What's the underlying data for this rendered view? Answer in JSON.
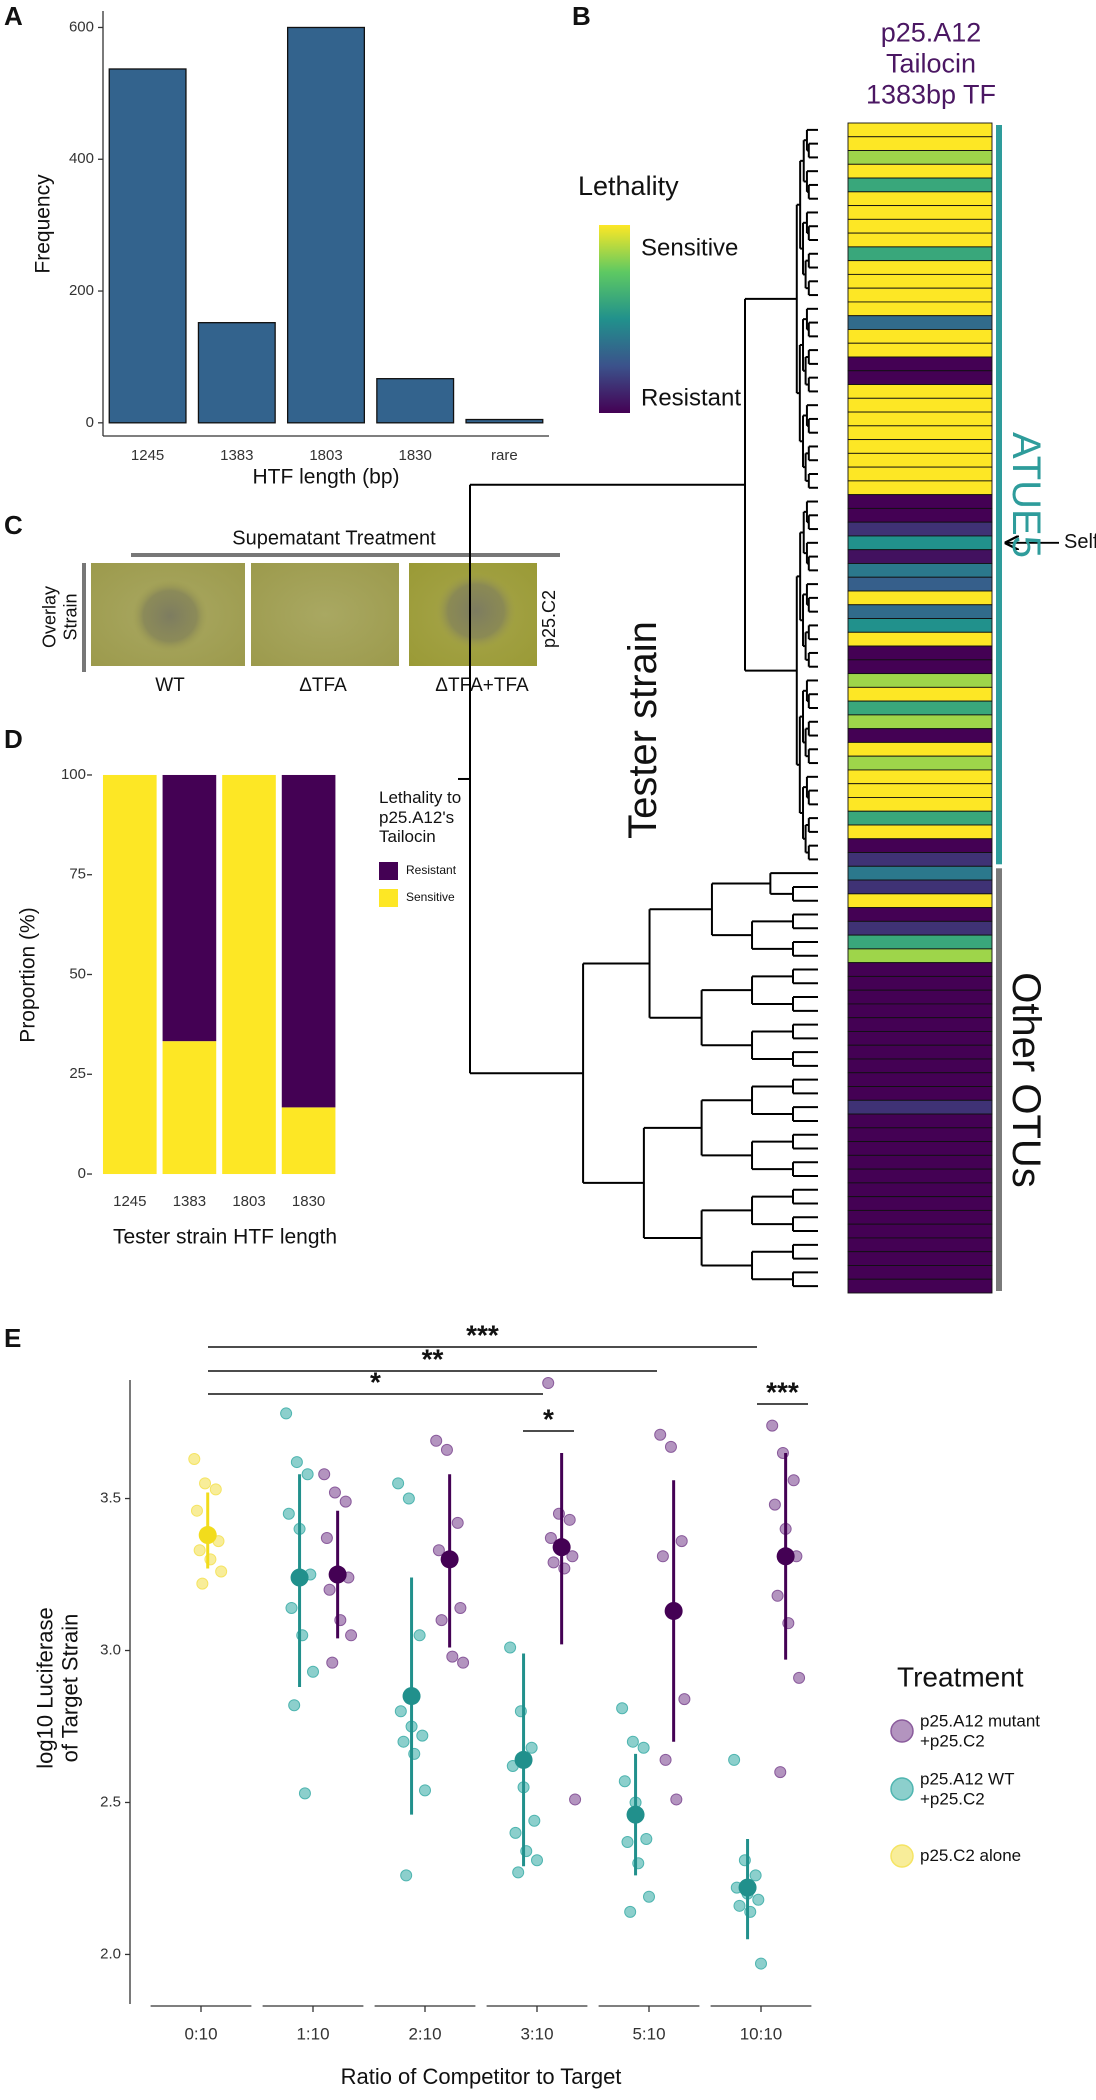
{
  "chart_data": [
    {
      "type": "bar",
      "panel_label": "A",
      "categories": [
        "1245",
        "1383",
        "1803",
        "1830",
        "rare"
      ],
      "values": [
        537,
        152,
        600,
        67,
        5
      ],
      "color": "#33638d",
      "xlabel": "HTF length (bp)",
      "ylabel": "Frequency",
      "ylim": [
        -20,
        625
      ],
      "yticks": [
        0,
        200,
        400,
        600
      ]
    },
    {
      "type": "heatmap",
      "panel_label": "B",
      "title": "p25.A12\nTailocin\n1383bp TF",
      "ylabel": "Tester strain",
      "values": [
        1,
        1,
        0.85,
        1,
        0.6,
        1,
        1,
        1,
        1,
        0.6,
        1,
        1,
        1,
        1,
        0.35,
        1,
        1,
        0,
        0,
        1,
        1,
        1,
        1,
        1,
        1,
        1,
        1,
        0,
        0,
        0.15,
        0.5,
        0.05,
        0.4,
        0.3,
        1,
        0.35,
        0.5,
        1,
        0,
        0,
        0.85,
        1,
        0.6,
        0.85,
        0,
        1,
        0.85,
        1,
        1,
        1,
        0.6,
        1,
        0,
        0.15,
        0.4,
        0.15,
        1,
        0,
        0.15,
        0.6,
        0.85,
        0,
        0,
        0,
        0,
        0,
        0,
        0,
        0,
        0,
        0,
        0.15,
        0,
        0,
        0,
        0,
        0,
        0,
        0,
        0,
        0,
        0,
        0,
        0,
        0
      ],
      "colorbar": {
        "title": "Lethality",
        "high_label": "Sensitive",
        "low_label": "Resistant",
        "colors": [
          "#440154",
          "#3b528b",
          "#21918c",
          "#5ec962",
          "#fde725"
        ]
      },
      "groups": [
        {
          "label": "ATUE5",
          "count": 54,
          "color": "#2e9c9b"
        },
        {
          "label": "Other OTUs",
          "count": 31,
          "color": "#7a7a7a"
        }
      ],
      "annotation": "Self"
    },
    {
      "type": "stacked-bar",
      "panel_label": "D",
      "categories": [
        "1245",
        "1383",
        "1803",
        "1830"
      ],
      "series": [
        {
          "name": "Resistant",
          "color": "#440154",
          "values": [
            0,
            66.7,
            0,
            83.3
          ]
        },
        {
          "name": "Sensitive",
          "color": "#fde725",
          "values": [
            100,
            33.3,
            100,
            16.7
          ]
        }
      ],
      "xlabel": "Tester strain HTF length",
      "ylabel": "Proportion (%)",
      "legend_title": "Lethality to\np25.A12's\nTailocin",
      "ylim": [
        -3,
        103
      ],
      "yticks": [
        0,
        25,
        50,
        75,
        100
      ]
    },
    {
      "type": "dot-errorbar",
      "panel_label": "E",
      "categories": [
        "0:10",
        "1:10",
        "2:10",
        "3:10",
        "5:10",
        "10:10"
      ],
      "series": [
        {
          "name": "p25.A12 mutant\n+p25.C2",
          "color": "#440154",
          "point_color": "#8a5b9c",
          "values": [
            null,
            3.25,
            3.3,
            3.34,
            3.13,
            3.31
          ],
          "lower": [
            null,
            3.04,
            3.01,
            3.02,
            2.7,
            2.97
          ],
          "upper": [
            null,
            3.46,
            3.58,
            3.65,
            3.56,
            3.65
          ],
          "points": [
            [],
            [
              3.58,
              3.52,
              3.49,
              3.37,
              3.26,
              3.24,
              3.2,
              3.1,
              3.05,
              2.96
            ],
            [
              3.69,
              3.66,
              3.42,
              3.33,
              3.29,
              3.14,
              3.1,
              2.98,
              2.96
            ],
            [
              3.88,
              3.45,
              3.43,
              3.37,
              3.33,
              3.31,
              3.29,
              3.27,
              2.51
            ],
            [
              3.71,
              3.67,
              3.36,
              3.31,
              3.12,
              2.84,
              2.64,
              2.51
            ],
            [
              3.74,
              3.65,
              3.56,
              3.48,
              3.4,
              3.31,
              3.18,
              3.09,
              2.91,
              2.6
            ]
          ]
        },
        {
          "name": "p25.A12 WT\n+p25.C2",
          "color": "#21908c",
          "point_color": "#4fb5b0",
          "values": [
            null,
            3.24,
            2.85,
            2.64,
            2.46,
            2.22
          ],
          "lower": [
            null,
            2.88,
            2.46,
            2.29,
            2.26,
            2.05
          ],
          "upper": [
            null,
            3.58,
            3.24,
            2.99,
            2.66,
            2.38
          ],
          "points": [
            [],
            [
              3.78,
              3.62,
              3.58,
              3.45,
              3.4,
              3.25,
              3.14,
              3.05,
              2.93,
              2.82,
              2.53
            ],
            [
              3.55,
              3.5,
              3.05,
              2.8,
              2.75,
              2.72,
              2.7,
              2.66,
              2.54,
              2.26
            ],
            [
              3.01,
              2.8,
              2.68,
              2.62,
              2.55,
              2.44,
              2.4,
              2.34,
              2.31,
              2.27
            ],
            [
              2.81,
              2.7,
              2.68,
              2.57,
              2.5,
              2.38,
              2.37,
              2.3,
              2.19,
              2.14
            ],
            [
              2.64,
              2.31,
              2.26,
              2.22,
              2.2,
              2.18,
              2.16,
              2.14,
              1.97
            ]
          ]
        },
        {
          "name": "p25.C2 alone",
          "color": "#f2dc1c",
          "point_color": "#f5e463",
          "values": [
            3.38,
            null,
            null,
            null,
            null,
            null
          ],
          "lower": [
            3.27,
            null,
            null,
            null,
            null,
            null
          ],
          "upper": [
            3.52,
            null,
            null,
            null,
            null,
            null
          ],
          "points": [
            [
              3.63,
              3.55,
              3.53,
              3.46,
              3.38,
              3.36,
              3.33,
              3.3,
              3.26,
              3.22
            ],
            [],
            [],
            [],
            [],
            []
          ]
        }
      ],
      "xlabel": "Ratio of Competitor to Target",
      "ylabel": "log10 Luciferase\nof Target Strain",
      "legend_title": "Treatment",
      "ylim": [
        1.86,
        3.89
      ],
      "yticks": [
        {
          "value": 2,
          "label": "2.0"
        },
        2.5,
        {
          "value": 3,
          "label": "3.0"
        },
        3.5
      ],
      "significance": [
        "***",
        "**",
        "*",
        "*",
        "***"
      ]
    }
  ],
  "panel_c": {
    "panel_label": "C",
    "title": "Supematant Treatment",
    "row_label": "Overlay\nStrain",
    "strain": "p25.C2",
    "columns": [
      "WT",
      "ΔTFA",
      "ΔTFA+TFA"
    ]
  }
}
